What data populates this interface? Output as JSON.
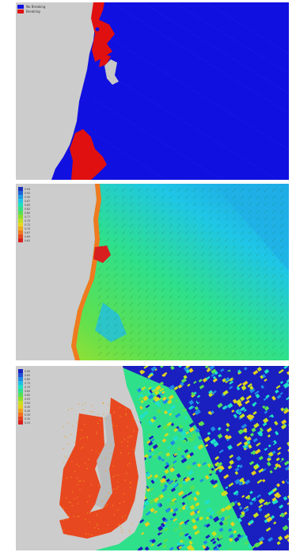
{
  "panels": [
    {
      "legend": [
        {
          "label": "No Breaking",
          "color": "#1010e0"
        },
        {
          "label": "Breaking",
          "color": "#e01010"
        }
      ]
    },
    {
      "scale_values": [
        "0.94",
        "0.92",
        "0.90",
        "0.87",
        "0.85",
        "0.82",
        "0.80",
        "0.77",
        "0.75",
        "0.72",
        "0.70",
        "0.67",
        "0.65",
        "0.62"
      ],
      "scale_colors": [
        "#1a2fbf",
        "#1f63d8",
        "#1f9ae6",
        "#1fc6e6",
        "#1fe0c0",
        "#2fe08a",
        "#55e055",
        "#8ae02c",
        "#bde01f",
        "#e6d81f",
        "#f0ab1f",
        "#f07a1f",
        "#e8481f",
        "#d81f1f"
      ]
    },
    {
      "scale_values": [
        "0.90",
        "0.85",
        "0.80",
        "0.75",
        "0.70",
        "0.65",
        "0.60",
        "0.55",
        "0.50",
        "0.45",
        "0.40",
        "0.35",
        "0.30",
        "0.25"
      ],
      "scale_colors": [
        "#1a1fbf",
        "#1f4fd8",
        "#1f8ae6",
        "#1fbde6",
        "#1fe0c8",
        "#2fe090",
        "#55e055",
        "#8ae02c",
        "#c8e01f",
        "#e6d01f",
        "#f0a01f",
        "#f0701f",
        "#e8401f",
        "#d81f1f"
      ]
    }
  ]
}
